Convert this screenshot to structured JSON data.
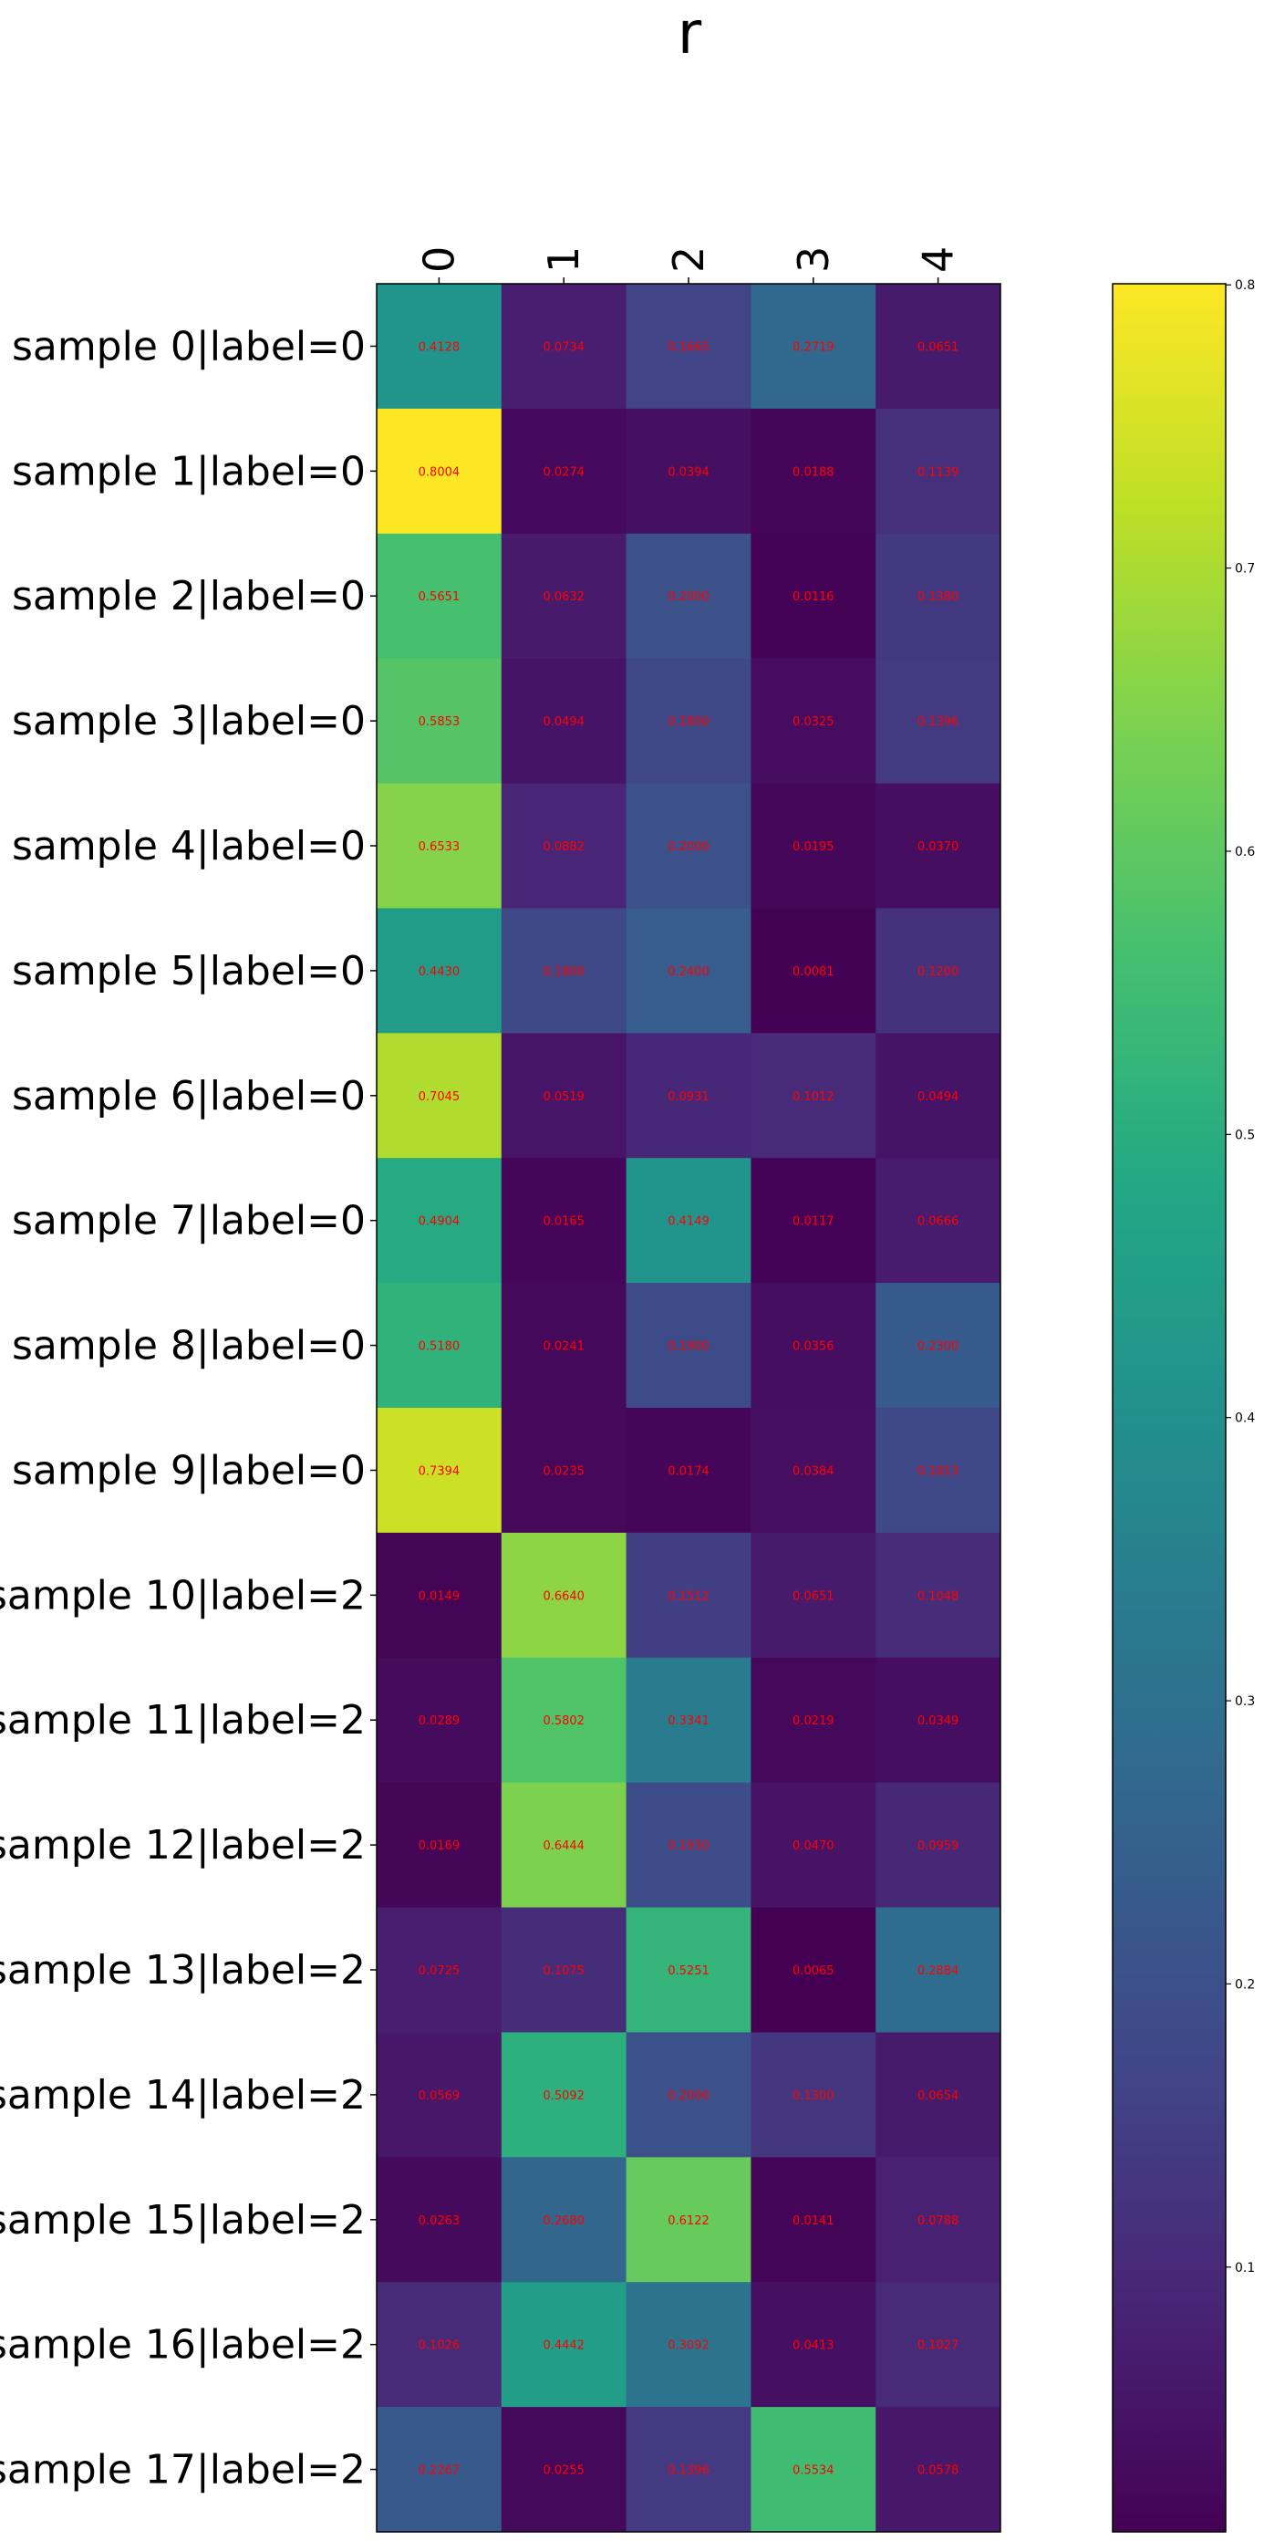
{
  "chart_data": {
    "type": "heatmap",
    "title": "r",
    "x_categories": [
      "0",
      "1",
      "2",
      "3",
      "4"
    ],
    "y_categories": [
      "sample 0|label=0",
      "sample 1|label=0",
      "sample 2|label=0",
      "sample 3|label=0",
      "sample 4|label=0",
      "sample 5|label=0",
      "sample 6|label=0",
      "sample 7|label=0",
      "sample 8|label=0",
      "sample 9|label=0",
      "sample 10|label=2",
      "sample 11|label=2",
      "sample 12|label=2",
      "sample 13|label=2",
      "sample 14|label=2",
      "sample 15|label=2",
      "sample 16|label=2",
      "sample 17|label=2"
    ],
    "values": [
      [
        0.4128,
        0.0734,
        0.1665,
        0.2719,
        0.0651
      ],
      [
        0.8004,
        0.0274,
        0.0394,
        0.0188,
        0.1139
      ],
      [
        0.5651,
        0.0632,
        0.2,
        0.0116,
        0.138
      ],
      [
        0.5853,
        0.0494,
        0.18,
        0.0325,
        0.1396
      ],
      [
        0.6533,
        0.0882,
        0.2,
        0.0195,
        0.037
      ],
      [
        0.443,
        0.18,
        0.24,
        0.0081,
        0.12
      ],
      [
        0.7045,
        0.0519,
        0.0931,
        0.1012,
        0.0494
      ],
      [
        0.4904,
        0.0165,
        0.4149,
        0.0117,
        0.0666
      ],
      [
        0.518,
        0.0241,
        0.19,
        0.0356,
        0.23
      ],
      [
        0.7394,
        0.0235,
        0.0174,
        0.0384,
        0.1813
      ],
      [
        0.0149,
        0.664,
        0.1512,
        0.0651,
        0.1048
      ],
      [
        0.0289,
        0.5802,
        0.3341,
        0.0219,
        0.0349
      ],
      [
        0.0169,
        0.6444,
        0.193,
        0.047,
        0.0959
      ],
      [
        0.0725,
        0.1075,
        0.5251,
        0.0065,
        0.2884
      ],
      [
        0.0569,
        0.5092,
        0.2,
        0.13,
        0.0654
      ],
      [
        0.0263,
        0.268,
        0.6122,
        0.0141,
        0.0788
      ],
      [
        0.1026,
        0.4442,
        0.3092,
        0.0413,
        0.1027
      ],
      [
        0.2267,
        0.0255,
        0.1396,
        0.5534,
        0.0578
      ]
    ],
    "cell_labels": [
      [
        "0.4128",
        "0.0734",
        "0.1665",
        "0.2719",
        "0.0651"
      ],
      [
        "0.8004",
        "0.0274",
        "0.0394",
        "0.0188",
        "0.1139"
      ],
      [
        "0.5651",
        "0.0632",
        "0.2000",
        "0.0116",
        "0.1380"
      ],
      [
        "0.5853",
        "0.0494",
        "0.1800",
        "0.0325",
        "0.1396"
      ],
      [
        "0.6533",
        "0.0882",
        "0.2000",
        "0.0195",
        "0.0370"
      ],
      [
        "0.4430",
        "0.1800",
        "0.2400",
        "0.0081",
        "0.1200"
      ],
      [
        "0.7045",
        "0.0519",
        "0.0931",
        "0.1012",
        "0.0494"
      ],
      [
        "0.4904",
        "0.0165",
        "0.4149",
        "0.0117",
        "0.0666"
      ],
      [
        "0.5180",
        "0.0241",
        "0.1900",
        "0.0356",
        "0.2300"
      ],
      [
        "0.7394",
        "0.0235",
        "0.0174",
        "0.0384",
        "0.1813"
      ],
      [
        "0.0149",
        "0.6640",
        "0.1512",
        "0.0651",
        "0.1048"
      ],
      [
        "0.0289",
        "0.5802",
        "0.3341",
        "0.0219",
        "0.0349"
      ],
      [
        "0.0169",
        "0.6444",
        "0.1930",
        "0.0470",
        "0.0959"
      ],
      [
        "0.0725",
        "0.1075",
        "0.5251",
        "0.0065",
        "0.2884"
      ],
      [
        "0.0569",
        "0.5092",
        "0.2000",
        "0.1300",
        "0.0654"
      ],
      [
        "0.0263",
        "0.2680",
        "0.6122",
        "0.0141",
        "0.0788"
      ],
      [
        "0.1026",
        "0.4442",
        "0.3092",
        "0.0413",
        "0.1027"
      ],
      [
        "0.2267",
        "0.0255",
        "0.1396",
        "0.5534",
        "0.0578"
      ]
    ],
    "colormap": "viridis",
    "vmin": 0.0065,
    "vmax": 0.8004,
    "colorbar_ticks": [
      {
        "value": 0.1,
        "label": "0.1"
      },
      {
        "value": 0.2,
        "label": "0.2"
      },
      {
        "value": 0.3,
        "label": "0.3"
      },
      {
        "value": 0.4,
        "label": "0.4"
      },
      {
        "value": 0.5,
        "label": "0.5"
      },
      {
        "value": 0.6,
        "label": "0.6"
      },
      {
        "value": 0.7,
        "label": "0.7"
      },
      {
        "value": 0.8,
        "label": "0.8"
      }
    ],
    "x_tick_position": "top",
    "annotation_color": "#ff0000",
    "colorbar_placement": "right"
  }
}
